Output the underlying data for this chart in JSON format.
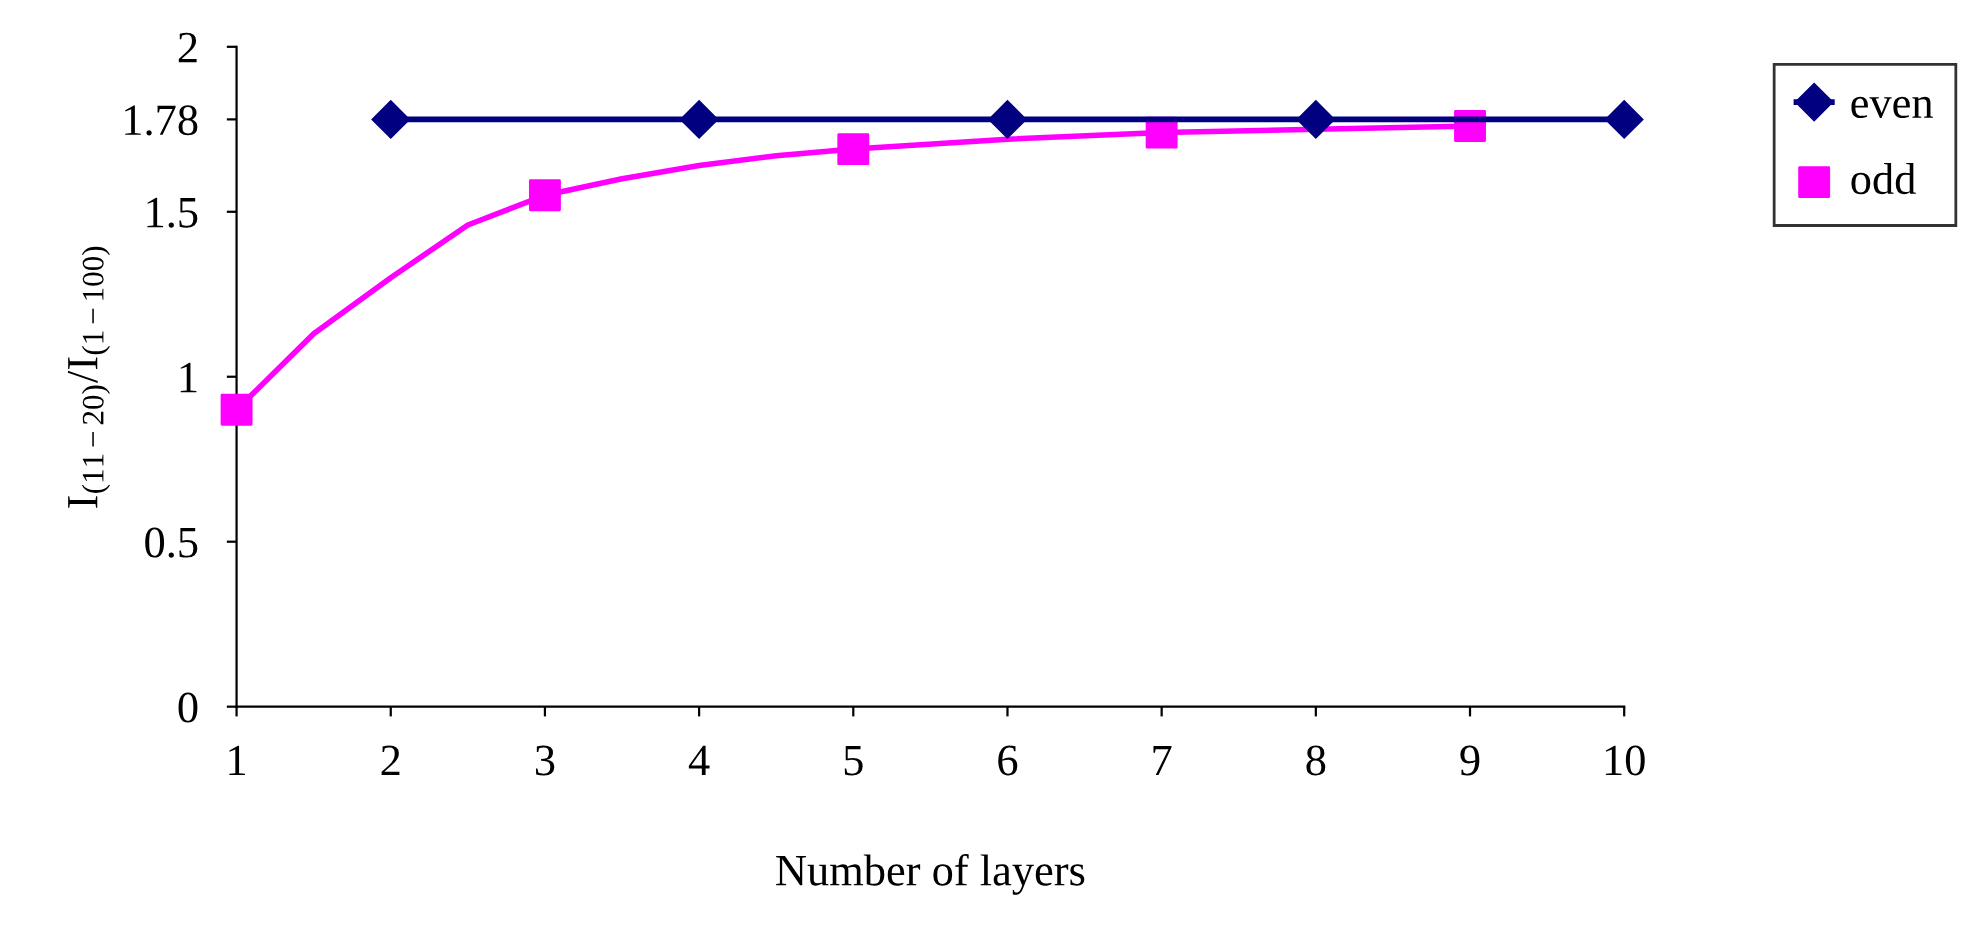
{
  "chart_data": {
    "type": "line",
    "xlabel": "Number of layers",
    "ylabel": "I$_{(11−20)}$/I$_{(1−100)}$",
    "xlim": [
      1,
      10
    ],
    "xticks": [
      1,
      2,
      3,
      4,
      5,
      6,
      7,
      8,
      9,
      10
    ],
    "ylim": [
      0,
      2
    ],
    "yticks": [
      0,
      0.5,
      1,
      1.5,
      1.78,
      2
    ],
    "grid": false,
    "legend": "top right",
    "series": [
      {
        "name": "even",
        "color": "#000080",
        "marker": "diamond",
        "x": [
          2,
          4,
          6,
          8,
          10
        ],
        "values": [
          1.78,
          1.78,
          1.78,
          1.78,
          1.78
        ]
      },
      {
        "name": "odd",
        "color": "#ff00ff",
        "type": "scatter",
        "marker": "square",
        "x": [
          1,
          3,
          5,
          7,
          9
        ],
        "values": [
          0.9,
          1.55,
          1.69,
          1.74,
          1.76
        ]
      },
      {
        "color": "#ff00ff",
        "marker": "none",
        "x": [
          1,
          1.5,
          2,
          2.5,
          3,
          3.5,
          4,
          4.5,
          5,
          6,
          7,
          8,
          9
        ],
        "values": [
          0.9,
          1.13,
          1.3,
          1.46,
          1.55,
          1.6,
          1.64,
          1.67,
          1.69,
          1.72,
          1.74,
          1.75,
          1.76
        ]
      }
    ]
  }
}
